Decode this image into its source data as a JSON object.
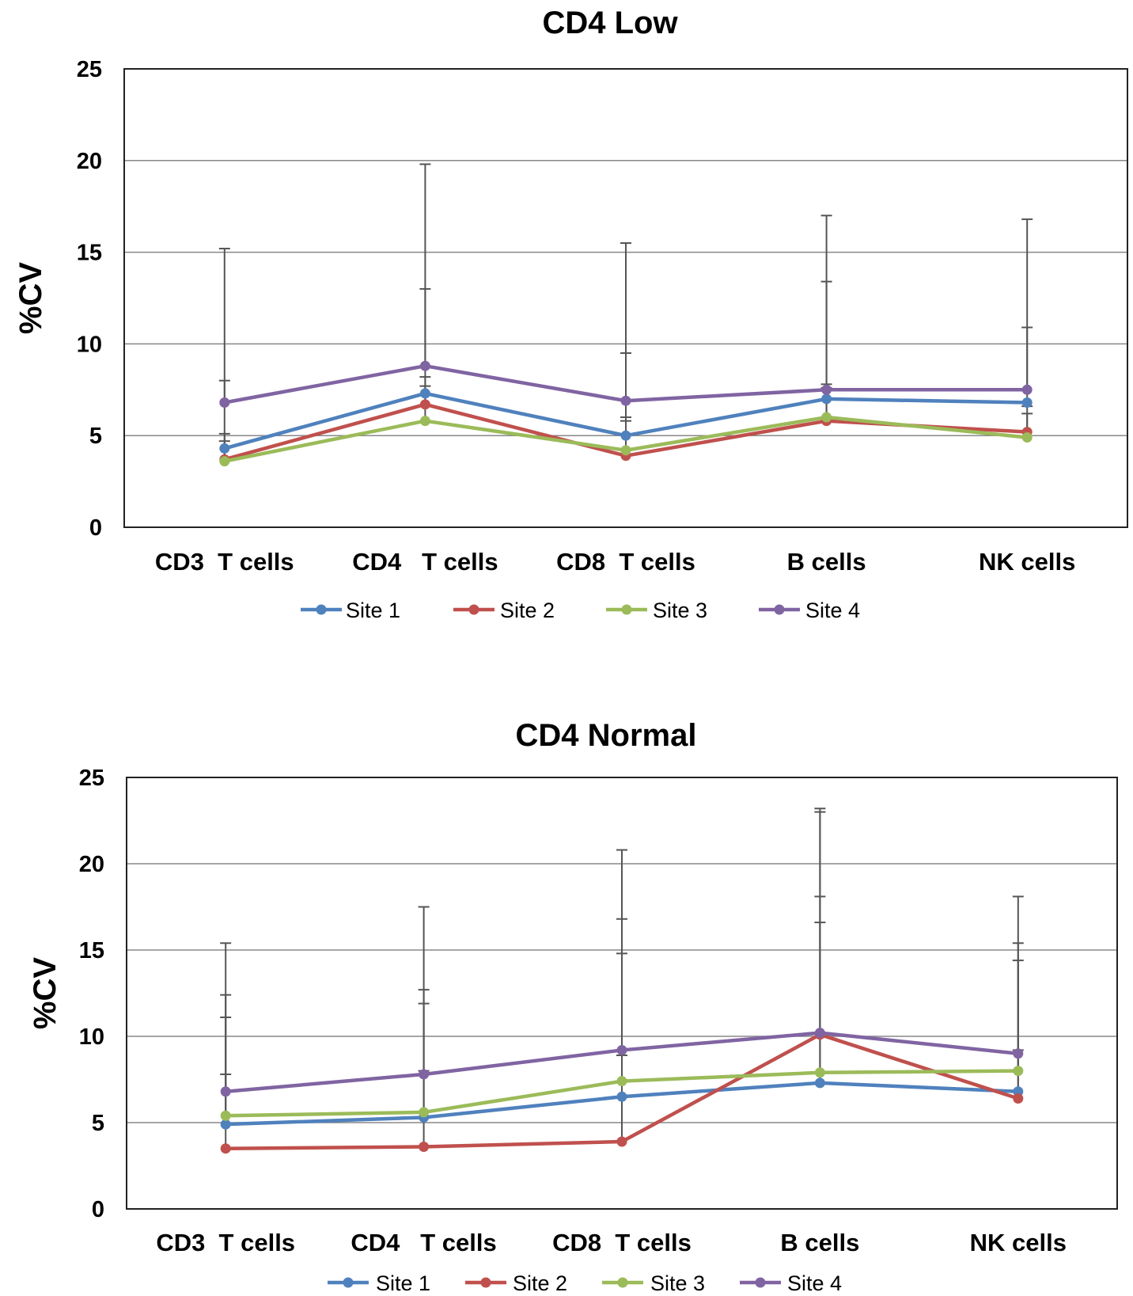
{
  "chart_data": [
    {
      "type": "line",
      "title": "CD4 Low",
      "xlabel": "",
      "ylabel": "%CV",
      "ylim": [
        0,
        25
      ],
      "yticks": [
        0,
        5,
        10,
        15,
        20,
        25
      ],
      "grid": true,
      "legend_position": "bottom",
      "categories": [
        "CD3  T cells",
        "CD4   T cells",
        "CD8  T cells",
        "B cells",
        "NK cells"
      ],
      "series": [
        {
          "name": "Site 1",
          "color": "#4F81BD",
          "values": [
            4.3,
            7.3,
            5.0,
            7.0,
            6.8
          ],
          "error_upper": [
            8.0,
            13.0,
            9.5,
            13.4,
            10.9
          ]
        },
        {
          "name": "Site 2",
          "color": "#C0504D",
          "values": [
            3.7,
            6.7,
            3.9,
            5.8,
            5.2
          ],
          "error_upper": [
            5.1,
            8.2,
            6.0,
            7.8,
            6.2
          ]
        },
        {
          "name": "Site 3",
          "color": "#9BBB59",
          "values": [
            3.6,
            5.8,
            4.2,
            6.0,
            4.9
          ],
          "error_upper": [
            4.7,
            7.7,
            5.8,
            7.6,
            6.6
          ]
        },
        {
          "name": "Site 4",
          "color": "#8064A2",
          "values": [
            6.8,
            8.8,
            6.9,
            7.5,
            7.5
          ],
          "error_upper": [
            15.2,
            19.8,
            15.5,
            17.0,
            16.8
          ]
        }
      ]
    },
    {
      "type": "line",
      "title": "CD4 Normal",
      "xlabel": "",
      "ylabel": "%CV",
      "ylim": [
        0,
        25
      ],
      "yticks": [
        0,
        5,
        10,
        15,
        20,
        25
      ],
      "grid": true,
      "legend_position": "bottom",
      "categories": [
        "CD3  T cells",
        "CD4   T cells",
        "CD8  T cells",
        "B cells",
        "NK cells"
      ],
      "series": [
        {
          "name": "Site 1",
          "color": "#4F81BD",
          "values": [
            4.9,
            5.3,
            6.5,
            7.3,
            6.8
          ],
          "error_upper": [
            7.8,
            11.9,
            14.8,
            16.6,
            14.4
          ]
        },
        {
          "name": "Site 2",
          "color": "#C0504D",
          "values": [
            3.5,
            3.6,
            3.9,
            10.1,
            6.4
          ],
          "error_upper": [
            11.1,
            8.0,
            8.9,
            23.2,
            9.2
          ]
        },
        {
          "name": "Site 3",
          "color": "#9BBB59",
          "values": [
            5.4,
            5.6,
            7.4,
            7.9,
            8.0
          ],
          "error_upper": [
            12.4,
            12.7,
            16.8,
            18.1,
            15.4
          ]
        },
        {
          "name": "Site 4",
          "color": "#8064A2",
          "values": [
            6.8,
            7.8,
            9.2,
            10.2,
            9.0
          ],
          "error_upper": [
            15.4,
            17.5,
            20.8,
            23.0,
            18.1
          ]
        }
      ]
    }
  ]
}
